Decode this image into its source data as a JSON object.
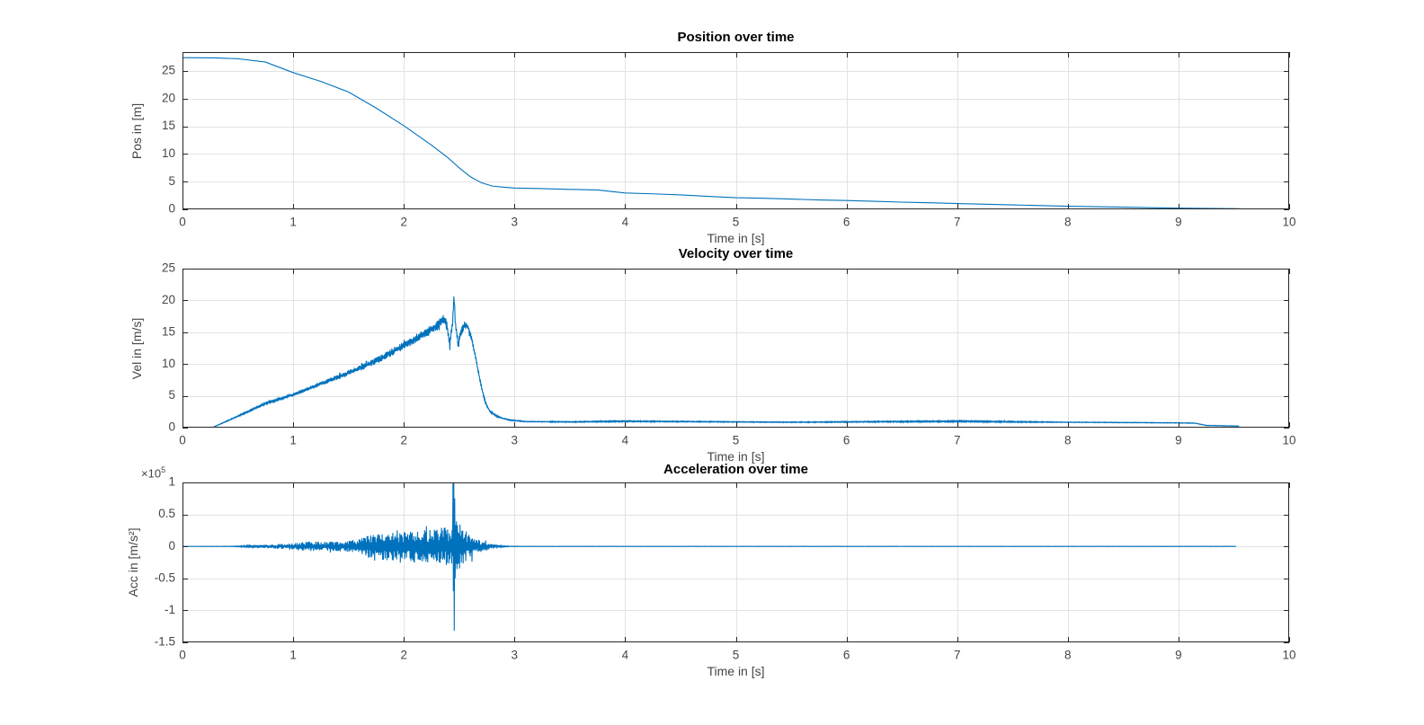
{
  "figure": {
    "background": "#ffffff",
    "line_color": "#0072BD",
    "grid_color": "#e2e2e2",
    "axis_color": "#262626",
    "tick_label_color": "#464646"
  },
  "chart_data": [
    {
      "id": "position",
      "type": "line",
      "title": "Position over time",
      "xlabel": "Time in [s]",
      "ylabel": "Pos in [m]",
      "xlim": [
        0,
        10
      ],
      "ylim": [
        0,
        28.4
      ],
      "xticks": [
        0,
        1,
        2,
        3,
        4,
        5,
        6,
        7,
        8,
        9,
        10
      ],
      "yticks": [
        0,
        5,
        10,
        15,
        20,
        25
      ],
      "grid": true,
      "points": [
        [
          0,
          27.4
        ],
        [
          0.3,
          27.35
        ],
        [
          0.5,
          27.2
        ],
        [
          0.75,
          26.6
        ],
        [
          1.0,
          24.7
        ],
        [
          1.25,
          23.1
        ],
        [
          1.5,
          21.2
        ],
        [
          1.75,
          18.3
        ],
        [
          2.0,
          15.1
        ],
        [
          2.25,
          11.6
        ],
        [
          2.4,
          9.3
        ],
        [
          2.5,
          7.5
        ],
        [
          2.6,
          5.9
        ],
        [
          2.7,
          4.8
        ],
        [
          2.8,
          4.2
        ],
        [
          2.9,
          4.0
        ],
        [
          3.0,
          3.85
        ],
        [
          3.25,
          3.75
        ],
        [
          3.5,
          3.6
        ],
        [
          3.75,
          3.5
        ],
        [
          4.0,
          2.95
        ],
        [
          4.25,
          2.8
        ],
        [
          4.5,
          2.6
        ],
        [
          4.75,
          2.35
        ],
        [
          5.0,
          2.1
        ],
        [
          5.25,
          2.0
        ],
        [
          5.5,
          1.85
        ],
        [
          5.75,
          1.7
        ],
        [
          6.0,
          1.6
        ],
        [
          6.25,
          1.45
        ],
        [
          6.5,
          1.3
        ],
        [
          6.75,
          1.18
        ],
        [
          7.0,
          1.05
        ],
        [
          7.25,
          0.92
        ],
        [
          7.5,
          0.8
        ],
        [
          7.75,
          0.68
        ],
        [
          8.0,
          0.55
        ],
        [
          8.25,
          0.48
        ],
        [
          8.5,
          0.4
        ],
        [
          8.75,
          0.3
        ],
        [
          9.0,
          0.22
        ],
        [
          9.2,
          0.18
        ],
        [
          9.35,
          0.15
        ],
        [
          9.55,
          0.12
        ]
      ]
    },
    {
      "id": "velocity",
      "type": "line",
      "title": "Velocity over time",
      "xlabel": "Time in [s]",
      "ylabel": "Vel in [m/s]",
      "xlim": [
        0,
        10
      ],
      "ylim": [
        0,
        25
      ],
      "xticks": [
        0,
        1,
        2,
        3,
        4,
        5,
        6,
        7,
        8,
        9,
        10
      ],
      "yticks": [
        0,
        5,
        10,
        15,
        20,
        25
      ],
      "grid": true,
      "t_end": 9.55,
      "base_points": [
        [
          0,
          0
        ],
        [
          0.27,
          0
        ],
        [
          0.5,
          1.8
        ],
        [
          0.75,
          3.8
        ],
        [
          1.0,
          5.2
        ],
        [
          1.25,
          6.9
        ],
        [
          1.5,
          8.6
        ],
        [
          1.75,
          10.5
        ],
        [
          2.0,
          12.9
        ],
        [
          2.2,
          14.9
        ],
        [
          2.3,
          16.0
        ],
        [
          2.36,
          17.2
        ],
        [
          2.39,
          16.0
        ],
        [
          2.415,
          12.8
        ],
        [
          2.44,
          16.5
        ],
        [
          2.455,
          20.8
        ],
        [
          2.465,
          16.5
        ],
        [
          2.49,
          13.0
        ],
        [
          2.52,
          15.2
        ],
        [
          2.55,
          16.2
        ],
        [
          2.58,
          15.8
        ],
        [
          2.62,
          13.5
        ],
        [
          2.66,
          10.0
        ],
        [
          2.7,
          6.5
        ],
        [
          2.74,
          3.8
        ],
        [
          2.78,
          2.5
        ],
        [
          2.85,
          1.7
        ],
        [
          2.95,
          1.2
        ],
        [
          3.1,
          0.95
        ],
        [
          3.5,
          0.9
        ],
        [
          4.0,
          1.0
        ],
        [
          4.5,
          0.95
        ],
        [
          5.0,
          0.9
        ],
        [
          5.5,
          0.85
        ],
        [
          6.0,
          0.9
        ],
        [
          6.5,
          0.95
        ],
        [
          7.0,
          1.0
        ],
        [
          7.3,
          0.95
        ],
        [
          7.6,
          0.9
        ],
        [
          8.0,
          0.85
        ],
        [
          8.5,
          0.8
        ],
        [
          9.0,
          0.75
        ],
        [
          9.15,
          0.7
        ],
        [
          9.25,
          0.35
        ],
        [
          9.4,
          0.3
        ],
        [
          9.55,
          0.25
        ]
      ],
      "noise_envelope": [
        [
          0,
          0
        ],
        [
          0.27,
          0.02
        ],
        [
          0.5,
          0.1
        ],
        [
          1.0,
          0.25
        ],
        [
          1.5,
          0.45
        ],
        [
          2.0,
          0.65
        ],
        [
          2.3,
          0.8
        ],
        [
          2.45,
          0.9
        ],
        [
          2.6,
          0.5
        ],
        [
          2.75,
          0.2
        ],
        [
          2.9,
          0.08
        ],
        [
          3.1,
          0.06
        ],
        [
          4.0,
          0.1
        ],
        [
          5.0,
          0.06
        ],
        [
          6.0,
          0.08
        ],
        [
          7.0,
          0.12
        ],
        [
          7.5,
          0.1
        ],
        [
          8.0,
          0.05
        ],
        [
          9.0,
          0.04
        ],
        [
          9.55,
          0.03
        ]
      ]
    },
    {
      "id": "acceleration",
      "type": "line",
      "title": "Acceleration over time",
      "xlabel": "Time in [s]",
      "ylabel": "Acc in [m/s²]",
      "y_multiplier_base": "×10",
      "y_multiplier_exp": "5",
      "xlim": [
        0,
        10
      ],
      "ylim": [
        -150000,
        100000
      ],
      "xticks": [
        0,
        1,
        2,
        3,
        4,
        5,
        6,
        7,
        8,
        9,
        10
      ],
      "yticks": [
        100000,
        50000,
        0,
        -50000,
        -100000,
        -150000
      ],
      "yticklabels": [
        "1",
        "0.5",
        "0",
        "-0.5",
        "-1",
        "-1.5"
      ],
      "grid": true,
      "t_end": 9.52,
      "base_points": [
        [
          0,
          0
        ],
        [
          9.52,
          0
        ]
      ],
      "noise_envelope": [
        [
          0,
          0
        ],
        [
          0.45,
          300
        ],
        [
          0.6,
          1500
        ],
        [
          0.8,
          3000
        ],
        [
          1.0,
          5500
        ],
        [
          1.15,
          8000
        ],
        [
          1.3,
          7000
        ],
        [
          1.5,
          9000
        ],
        [
          1.65,
          15000
        ],
        [
          1.75,
          24000
        ],
        [
          1.85,
          22000
        ],
        [
          1.95,
          26000
        ],
        [
          2.05,
          24000
        ],
        [
          2.15,
          27000
        ],
        [
          2.25,
          26000
        ],
        [
          2.35,
          30000
        ],
        [
          2.42,
          32000
        ],
        [
          2.44,
          60000
        ],
        [
          2.46,
          70000
        ],
        [
          2.48,
          45000
        ],
        [
          2.52,
          30000
        ],
        [
          2.58,
          22000
        ],
        [
          2.65,
          13000
        ],
        [
          2.72,
          8000
        ],
        [
          2.8,
          3500
        ],
        [
          2.88,
          1200
        ],
        [
          2.95,
          400
        ],
        [
          3.1,
          200
        ],
        [
          9.52,
          200
        ]
      ],
      "spikes": [
        {
          "t": 2.443,
          "v": 135000
        },
        {
          "t": 2.4465,
          "v": -70000
        },
        {
          "t": 2.45,
          "v": 140000
        },
        {
          "t": 2.4545,
          "v": -132000
        },
        {
          "t": 2.459,
          "v": 75000
        },
        {
          "t": 2.463,
          "v": -50000
        }
      ]
    }
  ]
}
